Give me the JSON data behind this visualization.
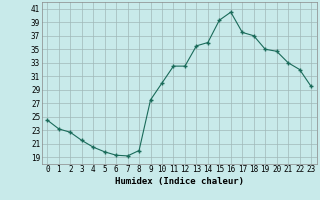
{
  "x": [
    0,
    1,
    2,
    3,
    4,
    5,
    6,
    7,
    8,
    9,
    10,
    11,
    12,
    13,
    14,
    15,
    16,
    17,
    18,
    19,
    20,
    21,
    22,
    23
  ],
  "y": [
    24.5,
    23.2,
    22.7,
    21.5,
    20.5,
    19.8,
    19.3,
    19.2,
    20.0,
    27.5,
    30.0,
    32.5,
    32.5,
    35.5,
    36.0,
    39.3,
    40.5,
    37.5,
    37.0,
    35.0,
    34.7,
    33.0,
    32.0,
    29.5
  ],
  "xlabel": "Humidex (Indice chaleur)",
  "xlim": [
    -0.5,
    23.5
  ],
  "ylim": [
    18,
    42
  ],
  "yticks": [
    19,
    21,
    23,
    25,
    27,
    29,
    31,
    33,
    35,
    37,
    39,
    41
  ],
  "xticks": [
    0,
    1,
    2,
    3,
    4,
    5,
    6,
    7,
    8,
    9,
    10,
    11,
    12,
    13,
    14,
    15,
    16,
    17,
    18,
    19,
    20,
    21,
    22,
    23
  ],
  "line_color": "#1a6b5a",
  "marker_color": "#1a6b5a",
  "bg_color": "#c8eaea",
  "grid_color": "#a0b8b8",
  "label_fontsize": 6.5,
  "tick_fontsize": 5.5
}
